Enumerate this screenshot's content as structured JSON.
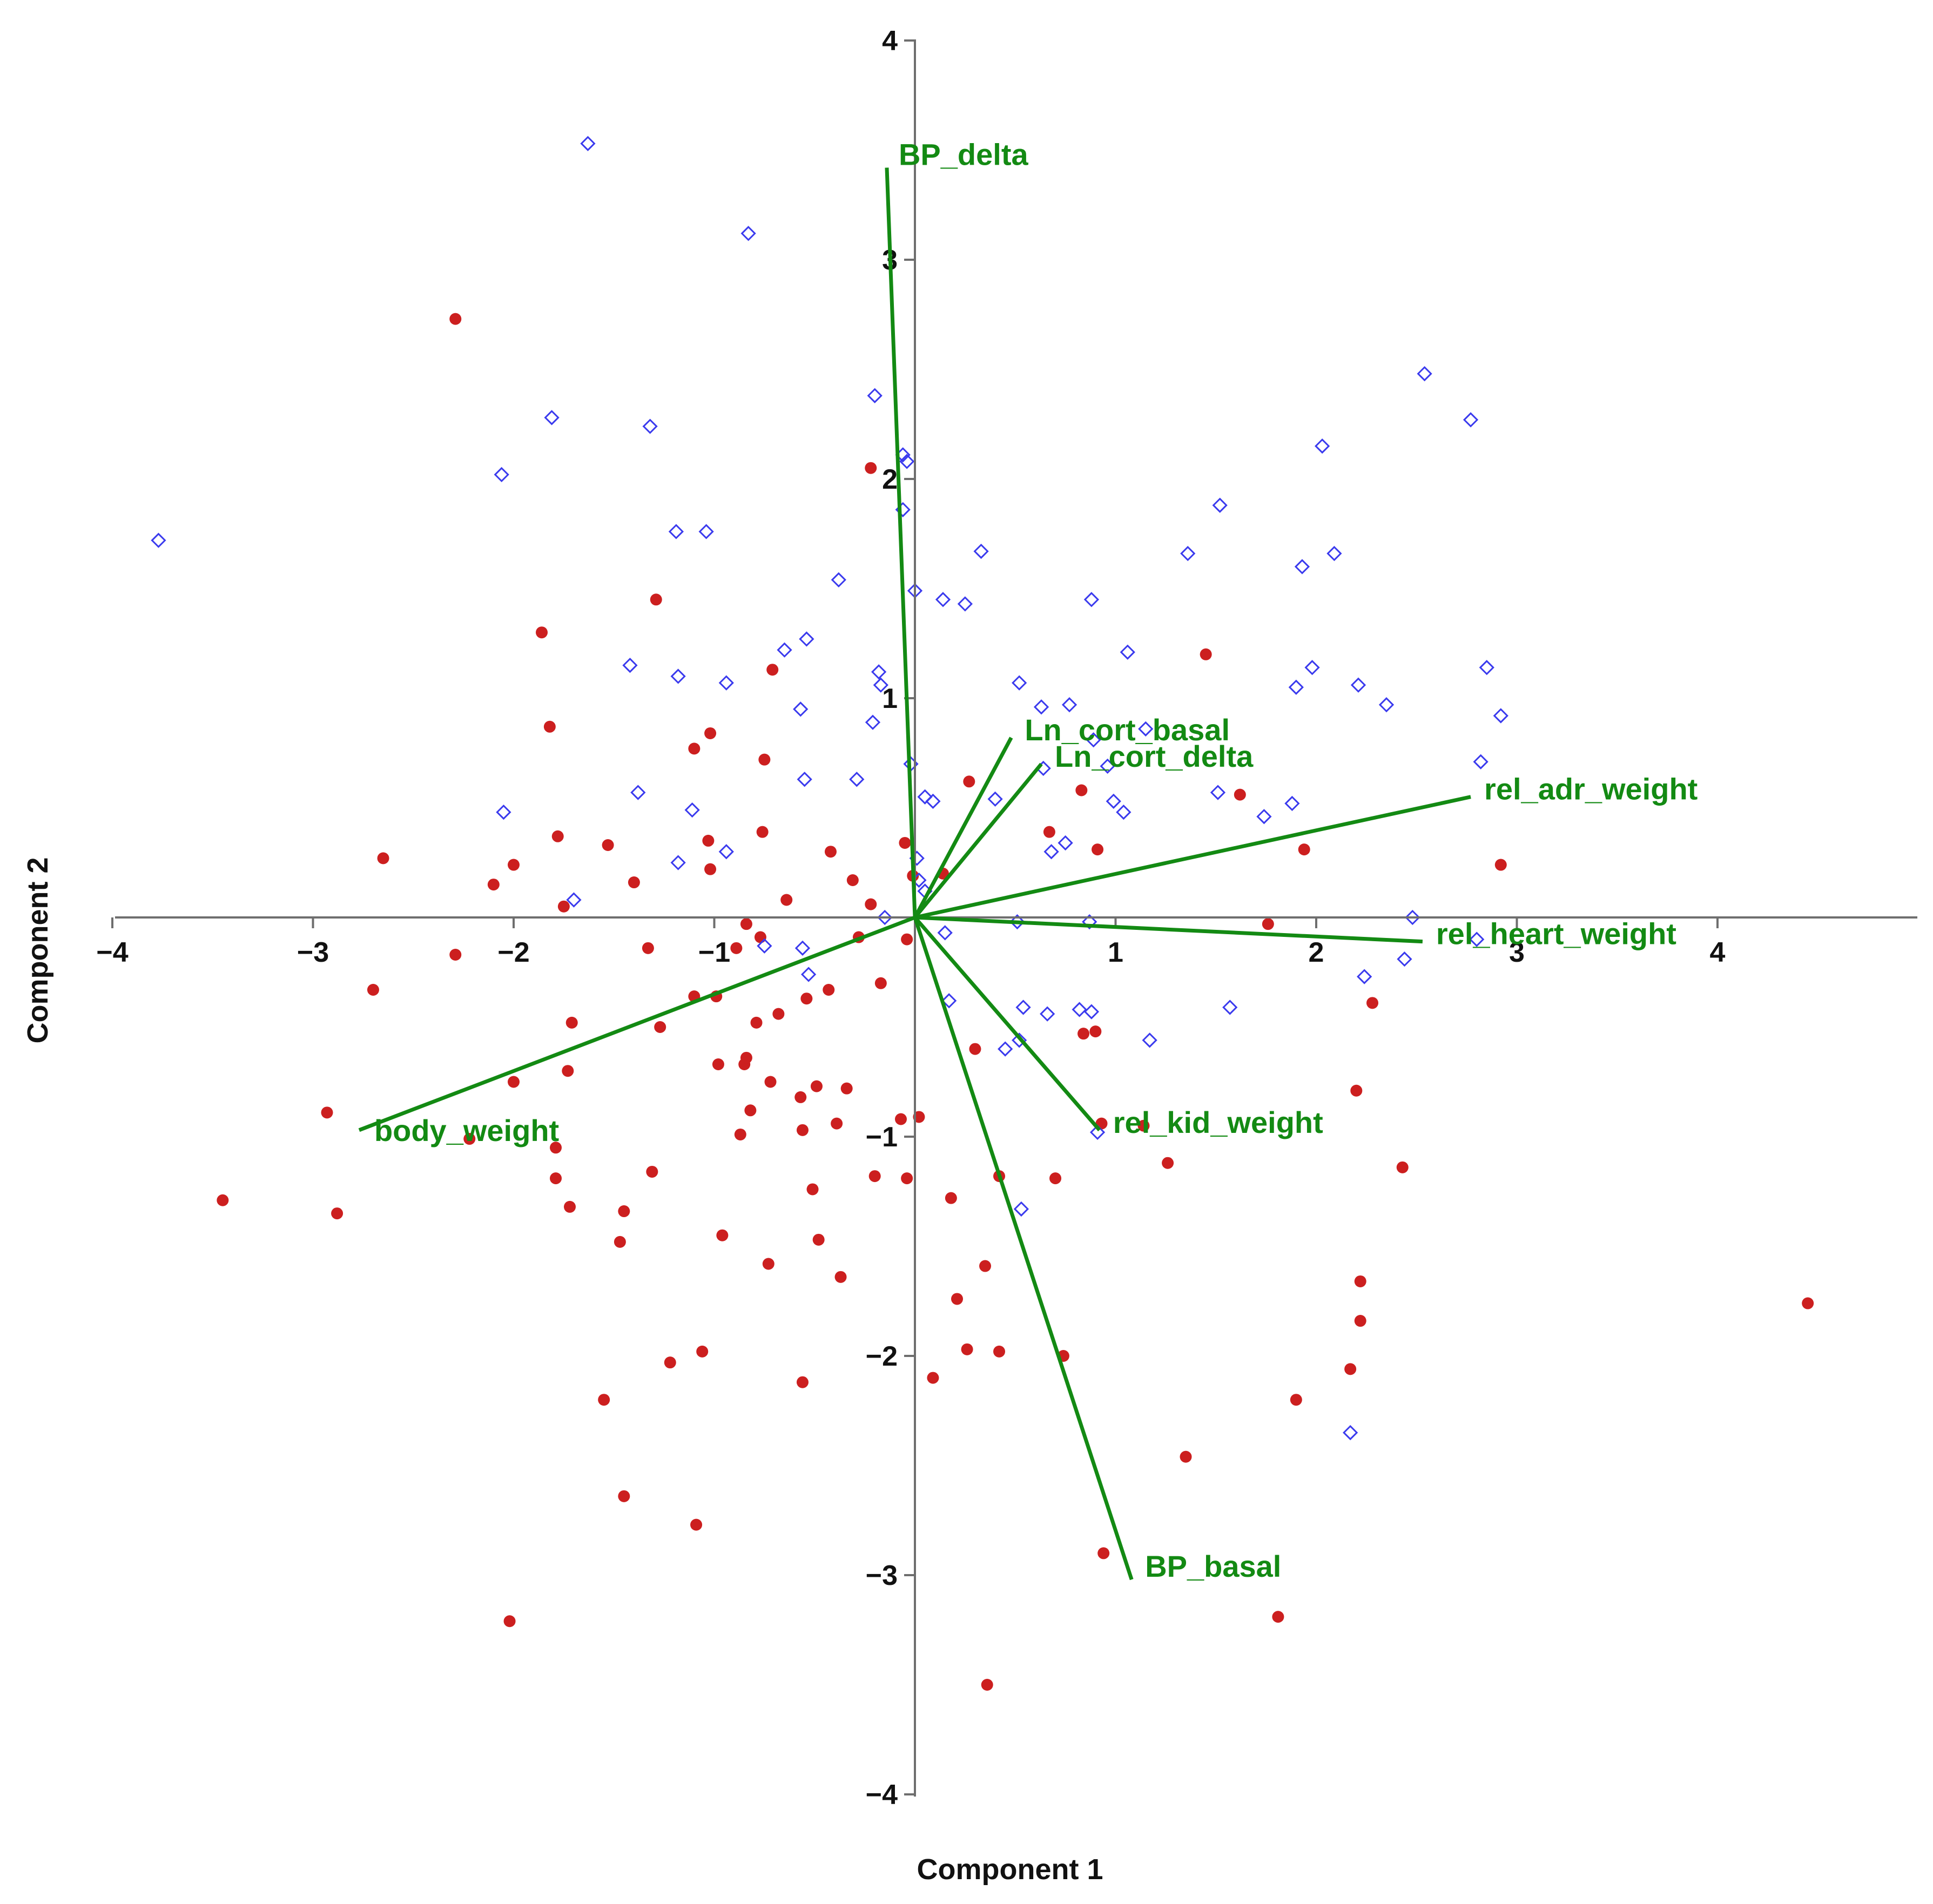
{
  "chart_data": {
    "type": "scatter",
    "title": "",
    "xlabel": "Component 1",
    "ylabel": "Component 2",
    "xlim": [
      -4,
      5
    ],
    "ylim": [
      -4,
      4
    ],
    "x_ticks": [
      {
        "value": -4,
        "label": "−4"
      },
      {
        "value": -3,
        "label": "−3"
      },
      {
        "value": -2,
        "label": "−2"
      },
      {
        "value": -1,
        "label": "−1"
      },
      {
        "value": 1,
        "label": "1"
      },
      {
        "value": 2,
        "label": "2"
      },
      {
        "value": 3,
        "label": "3"
      },
      {
        "value": 4,
        "label": "4"
      }
    ],
    "y_ticks": [
      {
        "value": 4,
        "label": "4"
      },
      {
        "value": 3,
        "label": "3"
      },
      {
        "value": 2,
        "label": "2"
      },
      {
        "value": 1,
        "label": "1"
      },
      {
        "value": -1,
        "label": "−1"
      },
      {
        "value": -2,
        "label": "−2"
      },
      {
        "value": -3,
        "label": "−3"
      },
      {
        "value": -4,
        "label": "−4"
      }
    ],
    "grid": false,
    "colors": {
      "filled": "#cc1f1f",
      "open": "#3a3aee",
      "loadings": "#138a13",
      "axis": "#6e6e6e"
    },
    "series": [
      {
        "marker": "filled-circle",
        "points": [
          [
            -2.29,
            2.73
          ],
          [
            -2.65,
            0.27
          ],
          [
            -2.1,
            0.15
          ],
          [
            -2.0,
            0.24
          ],
          [
            -1.78,
            0.37
          ],
          [
            -1.75,
            0.05
          ],
          [
            -1.53,
            0.33
          ],
          [
            -1.4,
            0.16
          ],
          [
            -1.86,
            1.3
          ],
          [
            -1.82,
            0.87
          ],
          [
            -1.29,
            1.45
          ],
          [
            -1.1,
            0.77
          ],
          [
            -1.02,
            0.84
          ],
          [
            -1.03,
            0.35
          ],
          [
            -1.02,
            0.22
          ],
          [
            -0.71,
            1.13
          ],
          [
            -0.75,
            0.72
          ],
          [
            -0.76,
            0.39
          ],
          [
            -0.64,
            0.08
          ],
          [
            -0.42,
            0.3
          ],
          [
            -0.31,
            0.17
          ],
          [
            -0.22,
            0.06
          ],
          [
            -0.22,
            2.05
          ],
          [
            -0.05,
            0.34
          ],
          [
            -0.01,
            0.19
          ],
          [
            0.14,
            0.2
          ],
          [
            0.27,
            0.62
          ],
          [
            0.83,
            0.58
          ],
          [
            0.67,
            0.39
          ],
          [
            0.91,
            0.31
          ],
          [
            1.45,
            1.2
          ],
          [
            1.62,
            0.56
          ],
          [
            1.94,
            0.31
          ],
          [
            2.92,
            0.24
          ],
          [
            2.28,
            -0.39
          ],
          [
            1.76,
            -0.03
          ],
          [
            2.2,
            -0.79
          ],
          [
            2.43,
            -1.14
          ],
          [
            1.26,
            -1.12
          ],
          [
            1.14,
            -0.95
          ],
          [
            0.93,
            -0.94
          ],
          [
            0.84,
            -0.53
          ],
          [
            0.9,
            -0.52
          ],
          [
            0.3,
            -0.6
          ],
          [
            0.42,
            -1.18
          ],
          [
            0.7,
            -1.19
          ],
          [
            0.18,
            -1.28
          ],
          [
            0.35,
            -1.59
          ],
          [
            0.21,
            -1.74
          ],
          [
            0.26,
            -1.97
          ],
          [
            0.42,
            -1.98
          ],
          [
            0.74,
            -2.0
          ],
          [
            0.09,
            -2.1
          ],
          [
            1.35,
            -2.46
          ],
          [
            0.94,
            -2.9
          ],
          [
            0.36,
            -3.5
          ],
          [
            1.81,
            -3.19
          ],
          [
            1.9,
            -2.2
          ],
          [
            2.17,
            -2.06
          ],
          [
            2.22,
            -1.84
          ],
          [
            2.22,
            -1.66
          ],
          [
            4.45,
            -1.76
          ],
          [
            -3.45,
            -1.29
          ],
          [
            -2.88,
            -1.35
          ],
          [
            -2.93,
            -0.89
          ],
          [
            -2.7,
            -0.33
          ],
          [
            -2.29,
            -0.17
          ],
          [
            -2.22,
            -1.01
          ],
          [
            -2.0,
            -0.75
          ],
          [
            -1.79,
            -1.05
          ],
          [
            -1.79,
            -1.19
          ],
          [
            -1.73,
            -0.7
          ],
          [
            -1.72,
            -1.32
          ],
          [
            -1.71,
            -0.48
          ],
          [
            -1.47,
            -1.48
          ],
          [
            -1.45,
            -1.34
          ],
          [
            -1.45,
            -2.64
          ],
          [
            -1.55,
            -2.2
          ],
          [
            -1.33,
            -0.14
          ],
          [
            -1.31,
            -1.16
          ],
          [
            -1.27,
            -0.5
          ],
          [
            -1.22,
            -2.03
          ],
          [
            -1.1,
            -0.36
          ],
          [
            -1.09,
            -2.77
          ],
          [
            -0.99,
            -0.36
          ],
          [
            -0.98,
            -0.67
          ],
          [
            -0.96,
            -1.45
          ],
          [
            -0.89,
            -0.14
          ],
          [
            -0.87,
            -0.99
          ],
          [
            -0.85,
            -0.67
          ],
          [
            -0.84,
            -0.64
          ],
          [
            -0.84,
            -0.03
          ],
          [
            -0.82,
            -0.88
          ],
          [
            -0.79,
            -0.48
          ],
          [
            -0.77,
            -0.09
          ],
          [
            -0.73,
            -1.58
          ],
          [
            -0.72,
            -0.75
          ],
          [
            -0.68,
            -0.44
          ],
          [
            -0.57,
            -0.82
          ],
          [
            -0.56,
            -0.97
          ],
          [
            -0.56,
            -2.12
          ],
          [
            -0.54,
            -0.37
          ],
          [
            -0.51,
            -1.24
          ],
          [
            -0.49,
            -0.77
          ],
          [
            -0.48,
            -1.47
          ],
          [
            -0.43,
            -0.33
          ],
          [
            -0.39,
            -0.94
          ],
          [
            -0.37,
            -1.64
          ],
          [
            -0.34,
            -0.78
          ],
          [
            -0.28,
            -0.09
          ],
          [
            -0.17,
            -0.3
          ],
          [
            -0.07,
            -0.92
          ],
          [
            -0.04,
            -0.1
          ],
          [
            -0.04,
            -1.19
          ],
          [
            0.02,
            -0.91
          ],
          [
            -2.02,
            -3.21
          ],
          [
            -1.06,
            -1.98
          ],
          [
            -0.2,
            -1.18
          ]
        ]
      },
      {
        "marker": "open-diamond",
        "points": [
          [
            -3.77,
            1.72
          ],
          [
            -1.63,
            3.53
          ],
          [
            -0.83,
            3.12
          ],
          [
            -2.06,
            2.02
          ],
          [
            -1.81,
            2.28
          ],
          [
            -1.32,
            2.24
          ],
          [
            -1.19,
            1.76
          ],
          [
            -1.04,
            1.76
          ],
          [
            -0.06,
            2.11
          ],
          [
            -0.04,
            2.08
          ],
          [
            -0.2,
            2.38
          ],
          [
            -0.06,
            1.86
          ],
          [
            0.0,
            1.49
          ],
          [
            0.14,
            1.45
          ],
          [
            0.25,
            1.43
          ],
          [
            0.33,
            1.67
          ],
          [
            0.88,
            1.45
          ],
          [
            1.36,
            1.66
          ],
          [
            1.52,
            1.88
          ],
          [
            2.03,
            2.15
          ],
          [
            2.09,
            1.66
          ],
          [
            1.93,
            1.6
          ],
          [
            2.54,
            2.48
          ],
          [
            2.77,
            2.27
          ],
          [
            1.06,
            1.21
          ],
          [
            1.98,
            1.14
          ],
          [
            2.21,
            1.06
          ],
          [
            2.35,
            0.97
          ],
          [
            2.85,
            1.14
          ],
          [
            2.92,
            0.92
          ],
          [
            2.82,
            0.71
          ],
          [
            1.9,
            1.05
          ],
          [
            1.88,
            0.52
          ],
          [
            1.74,
            0.46
          ],
          [
            1.51,
            0.57
          ],
          [
            1.04,
            0.48
          ],
          [
            0.99,
            0.53
          ],
          [
            1.15,
            0.86
          ],
          [
            0.96,
            0.69
          ],
          [
            0.89,
            0.81
          ],
          [
            0.77,
            0.97
          ],
          [
            0.63,
            0.96
          ],
          [
            0.52,
            1.07
          ],
          [
            0.4,
            0.54
          ],
          [
            0.64,
            0.68
          ],
          [
            -0.54,
            1.27
          ],
          [
            -0.65,
            1.22
          ],
          [
            -0.38,
            1.54
          ],
          [
            -1.42,
            1.15
          ],
          [
            -1.18,
            1.1
          ],
          [
            -0.94,
            1.07
          ],
          [
            -0.57,
            0.95
          ],
          [
            -0.18,
            1.12
          ],
          [
            -0.17,
            1.06
          ],
          [
            -0.21,
            0.89
          ],
          [
            -0.55,
            0.63
          ],
          [
            -0.29,
            0.63
          ],
          [
            -0.02,
            0.7
          ],
          [
            0.05,
            0.55
          ],
          [
            -1.38,
            0.57
          ],
          [
            -1.11,
            0.49
          ],
          [
            -2.05,
            0.48
          ],
          [
            -1.7,
            0.08
          ],
          [
            -1.18,
            0.25
          ],
          [
            -0.94,
            0.3
          ],
          [
            -0.75,
            -0.13
          ],
          [
            -0.56,
            -0.14
          ],
          [
            -0.53,
            -0.26
          ],
          [
            -0.15,
            0.0
          ],
          [
            0.01,
            0.27
          ],
          [
            0.05,
            0.12
          ],
          [
            0.09,
            0.53
          ],
          [
            0.02,
            0.17
          ],
          [
            0.51,
            -0.02
          ],
          [
            0.68,
            0.3
          ],
          [
            0.75,
            0.34
          ],
          [
            0.87,
            -0.02
          ],
          [
            0.54,
            -0.41
          ],
          [
            0.52,
            -0.56
          ],
          [
            0.45,
            -0.6
          ],
          [
            0.66,
            -0.44
          ],
          [
            0.82,
            -0.42
          ],
          [
            0.88,
            -0.43
          ],
          [
            0.91,
            -0.98
          ],
          [
            0.53,
            -1.33
          ],
          [
            1.17,
            -0.56
          ],
          [
            1.57,
            -0.41
          ],
          [
            2.24,
            -0.27
          ],
          [
            2.44,
            -0.19
          ],
          [
            2.48,
            0.0
          ],
          [
            2.8,
            -0.1
          ],
          [
            2.17,
            -2.35
          ],
          [
            0.17,
            -0.38
          ],
          [
            0.15,
            -0.07
          ]
        ]
      }
    ],
    "loadings": [
      {
        "label": "BP_delta",
        "x": -0.14,
        "y": 3.42
      },
      {
        "label": "Ln_cort_basal",
        "x": 0.48,
        "y": 0.82
      },
      {
        "label": "Ln_cort_delta",
        "x": 0.63,
        "y": 0.7
      },
      {
        "label": "rel_adr_weight",
        "x": 2.77,
        "y": 0.55
      },
      {
        "label": "rel_heart_weight",
        "x": 2.53,
        "y": -0.11
      },
      {
        "label": "rel_kid_weight",
        "x": 0.92,
        "y": -0.97
      },
      {
        "label": "BP_basal",
        "x": 1.08,
        "y": -3.02
      },
      {
        "label": "body_weight",
        "x": -2.77,
        "y": -0.97
      }
    ]
  }
}
